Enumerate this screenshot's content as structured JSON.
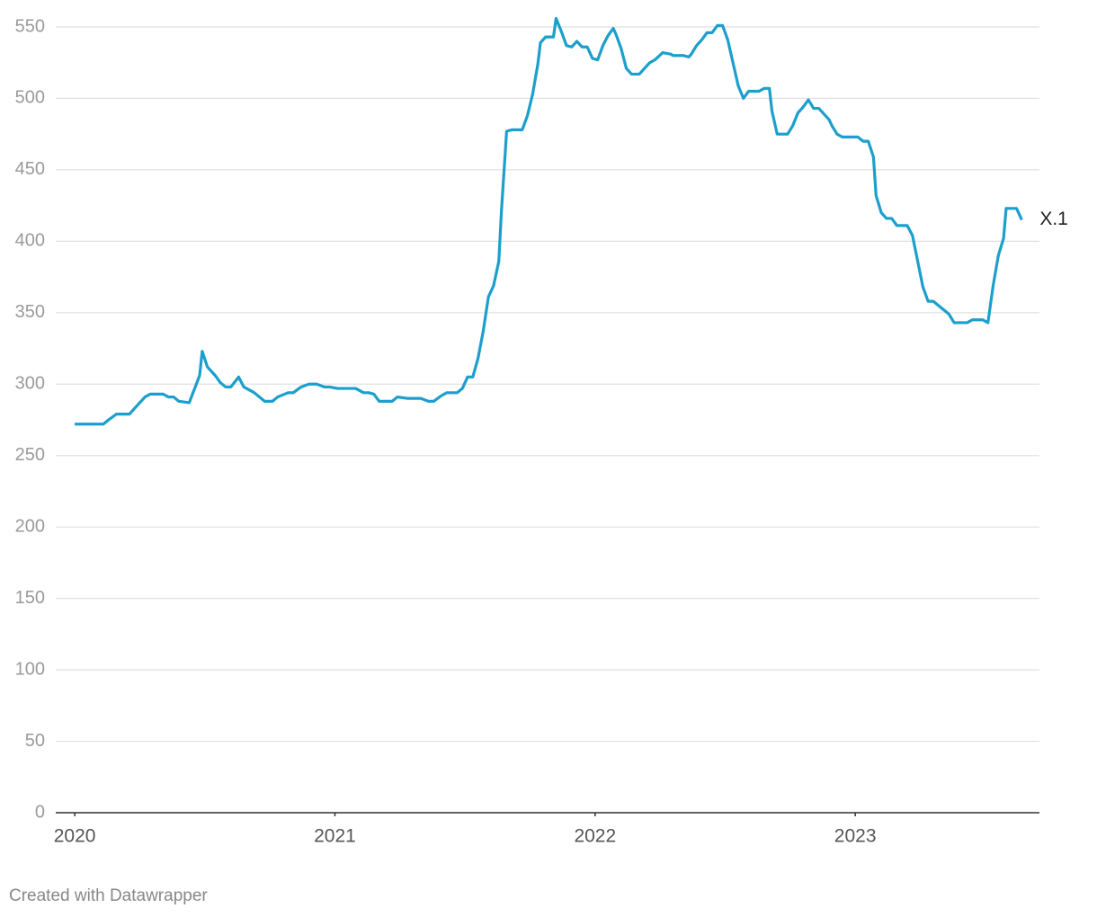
{
  "chart_data": {
    "type": "line",
    "credit": "Created with Datawrapper",
    "x": [
      2020.0,
      2020.11,
      2020.13,
      2020.16,
      2020.21,
      2020.24,
      2020.27,
      2020.29,
      2020.34,
      2020.36,
      2020.38,
      2020.4,
      2020.44,
      2020.48,
      2020.49,
      2020.51,
      2020.54,
      2020.56,
      2020.58,
      2020.6,
      2020.63,
      2020.65,
      2020.69,
      2020.73,
      2020.76,
      2020.78,
      2020.82,
      2020.84,
      2020.87,
      2020.9,
      2020.93,
      2020.96,
      2020.98,
      2021.01,
      2021.08,
      2021.11,
      2021.13,
      2021.15,
      2021.17,
      2021.22,
      2021.24,
      2021.28,
      2021.33,
      2021.36,
      2021.38,
      2021.41,
      2021.43,
      2021.47,
      2021.49,
      2021.51,
      2021.53,
      2021.55,
      2021.57,
      2021.59,
      2021.61,
      2021.63,
      2021.64,
      2021.66,
      2021.68,
      2021.72,
      2021.74,
      2021.76,
      2021.78,
      2021.79,
      2021.81,
      2021.84,
      2021.85,
      2021.87,
      2021.89,
      2021.91,
      2021.93,
      2021.95,
      2021.97,
      2021.99,
      2022.01,
      2022.03,
      2022.05,
      2022.07,
      2022.08,
      2022.1,
      2022.12,
      2022.14,
      2022.17,
      2022.19,
      2022.21,
      2022.23,
      2022.26,
      2022.29,
      2022.3,
      2022.34,
      2022.36,
      2022.37,
      2022.39,
      2022.41,
      2022.43,
      2022.45,
      2022.47,
      2022.49,
      2022.51,
      2022.53,
      2022.55,
      2022.57,
      2022.59,
      2022.63,
      2022.65,
      2022.67,
      2022.68,
      2022.7,
      2022.74,
      2022.76,
      2022.78,
      2022.8,
      2022.82,
      2022.84,
      2022.86,
      2022.88,
      2022.9,
      2022.91,
      2022.93,
      2022.95,
      2023.01,
      2023.03,
      2023.05,
      2023.07,
      2023.08,
      2023.1,
      2023.12,
      2023.14,
      2023.16,
      2023.2,
      2023.22,
      2023.24,
      2023.26,
      2023.28,
      2023.3,
      2023.32,
      2023.36,
      2023.38,
      2023.43,
      2023.45,
      2023.49,
      2023.51,
      2023.53,
      2023.55,
      2023.57,
      2023.58,
      2023.62,
      2023.64
    ],
    "series": [
      {
        "name": "X.1",
        "color": "#1c9fcc",
        "values": [
          272,
          272,
          275,
          279,
          279,
          285,
          291,
          293,
          293,
          291,
          291,
          288,
          287,
          306,
          323,
          312,
          306,
          301,
          298,
          298,
          305,
          298,
          294,
          288,
          288,
          291,
          294,
          294,
          298,
          300,
          300,
          298,
          298,
          297,
          297,
          294,
          294,
          293,
          288,
          288,
          291,
          290,
          290,
          288,
          288,
          292,
          294,
          294,
          297,
          305,
          305,
          318,
          337,
          361,
          369,
          386,
          421,
          477,
          478,
          478,
          488,
          503,
          524,
          539,
          543,
          543,
          556,
          547,
          537,
          536,
          540,
          536,
          536,
          528,
          527,
          537,
          544,
          549,
          545,
          535,
          521,
          517,
          517,
          521,
          525,
          527,
          532,
          531,
          530,
          530,
          529,
          531,
          537,
          541,
          546,
          546,
          551,
          551,
          541,
          525,
          509,
          500,
          505,
          505,
          507,
          507,
          491,
          475,
          475,
          481,
          490,
          494,
          499,
          493,
          493,
          489,
          485,
          481,
          475,
          473,
          473,
          470,
          470,
          459,
          432,
          420,
          416,
          416,
          411,
          411,
          404,
          386,
          368,
          358,
          358,
          355,
          349,
          343,
          343,
          345,
          345,
          343,
          369,
          390,
          402,
          423,
          423,
          415
        ]
      }
    ],
    "xlim": [
      2019.927,
      2023.708
    ],
    "xticks": [
      2020,
      2021,
      2022,
      2023
    ],
    "ylim": [
      0,
      550
    ],
    "yticks": [
      0,
      50,
      100,
      150,
      200,
      250,
      300,
      350,
      400,
      450,
      500,
      550
    ],
    "grid": true
  }
}
